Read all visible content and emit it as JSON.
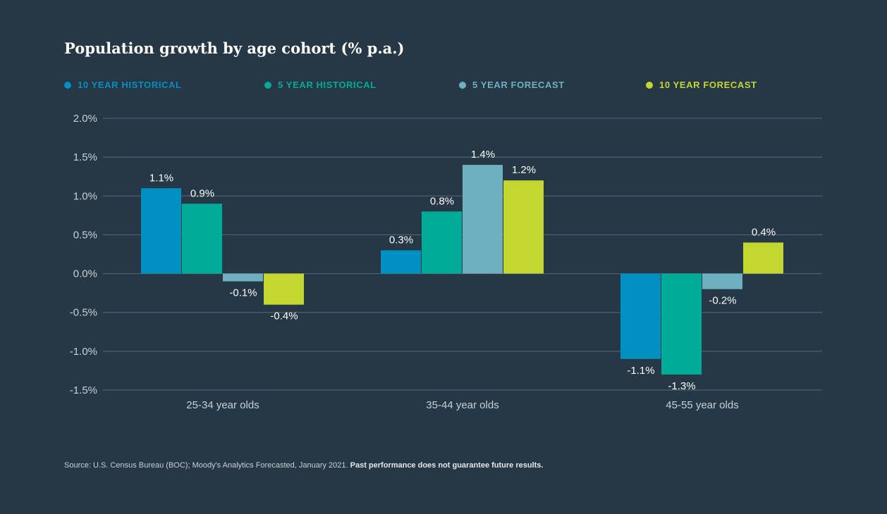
{
  "title": "Population growth by age cohort (% p.a.)",
  "legend": [
    {
      "label": "10 YEAR HISTORICAL",
      "color": "#0090c1"
    },
    {
      "label": "5 YEAR HISTORICAL",
      "color": "#00ac97"
    },
    {
      "label": "5 YEAR FORECAST",
      "color": "#6fb0c0"
    },
    {
      "label": "10 YEAR FORECAST",
      "color": "#c4d630"
    }
  ],
  "chart_data": {
    "type": "bar",
    "title": "Population growth by age cohort (% p.a.)",
    "xlabel": "",
    "ylabel": "",
    "ylim": [
      -1.5,
      2.0
    ],
    "yticks": [
      2.0,
      1.5,
      1.0,
      0.5,
      0.0,
      -0.5,
      -1.0,
      -1.5
    ],
    "ytick_labels": [
      "2.0%",
      "1.5%",
      "1.0%",
      "0.5%",
      "0.0%",
      "-0.5%",
      "-1.0%",
      "-1.5%"
    ],
    "grid": true,
    "categories": [
      "25-34 year olds",
      "35-44 year olds",
      "45-55 year olds"
    ],
    "series": [
      {
        "name": "10 YEAR HISTORICAL",
        "color": "#0090c1",
        "values": [
          1.1,
          0.3,
          -1.1
        ],
        "labels": [
          "1.1%",
          "0.3%",
          "-1.1%"
        ]
      },
      {
        "name": "5 YEAR HISTORICAL",
        "color": "#00ac97",
        "values": [
          0.9,
          0.8,
          -1.3
        ],
        "labels": [
          "0.9%",
          "0.8%",
          "-1.3%"
        ]
      },
      {
        "name": "5 YEAR FORECAST",
        "color": "#6fb0c0",
        "values": [
          -0.1,
          1.4,
          -0.2
        ],
        "labels": [
          "-0.1%",
          "1.4%",
          "-0.2%"
        ]
      },
      {
        "name": "10 YEAR FORECAST",
        "color": "#c4d630",
        "values": [
          -0.4,
          1.2,
          0.4
        ],
        "labels": [
          "-0.4%",
          "1.2%",
          "0.4%"
        ]
      }
    ]
  },
  "source": {
    "text": "Source: U.S. Census Bureau (BOC); Moody's Analytics Forecasted, January 2021. ",
    "bold": "Past performance does not guarantee future results."
  },
  "colors": {
    "background": "#263746",
    "grid": "#56687a",
    "tick_text": "#c9d0d6"
  }
}
